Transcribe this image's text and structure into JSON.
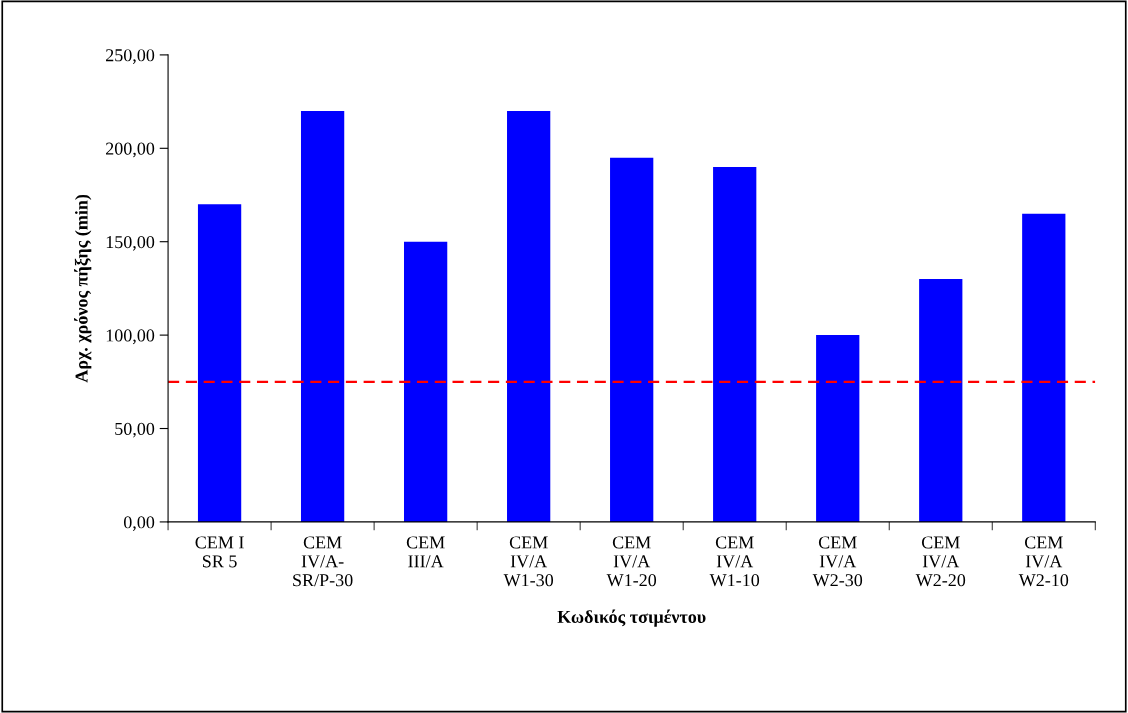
{
  "chart_data": {
    "type": "bar",
    "xlabel": "Κωδικός τσιμέντου",
    "ylabel": "Αρχ. χρόνος πήξης (min)",
    "categories": [
      "CEM I\nSR 5",
      "CEM\nIV/A-\nSR/P-30",
      "CEM\nIII/A",
      "CEM\nIV/A\nW1-30",
      "CEM\nIV/A\nW1-20",
      "CEM\nIV/A\nW1-10",
      "CEM\nIV/A\nW2-30",
      "CEM\nIV/A\nW2-20",
      "CEM\nIV/A\nW2-10"
    ],
    "values": [
      170,
      220,
      150,
      220,
      195,
      190,
      100,
      130,
      165
    ],
    "color": "#0000ff",
    "ylim": [
      0,
      250
    ],
    "yticks": [
      {
        "value": 0,
        "label": "0,00"
      },
      {
        "value": 50,
        "label": "50,00"
      },
      {
        "value": 100,
        "label": "100,00"
      },
      {
        "value": 150,
        "label": "150,00"
      },
      {
        "value": 200,
        "label": "200,00"
      },
      {
        "value": 250,
        "label": "250,00"
      }
    ],
    "ref_lines": [
      {
        "axis": "y",
        "value": 75,
        "label": null,
        "color": "#ff0000",
        "line_style": "dashed"
      }
    ],
    "grid": false,
    "legend": false
  }
}
